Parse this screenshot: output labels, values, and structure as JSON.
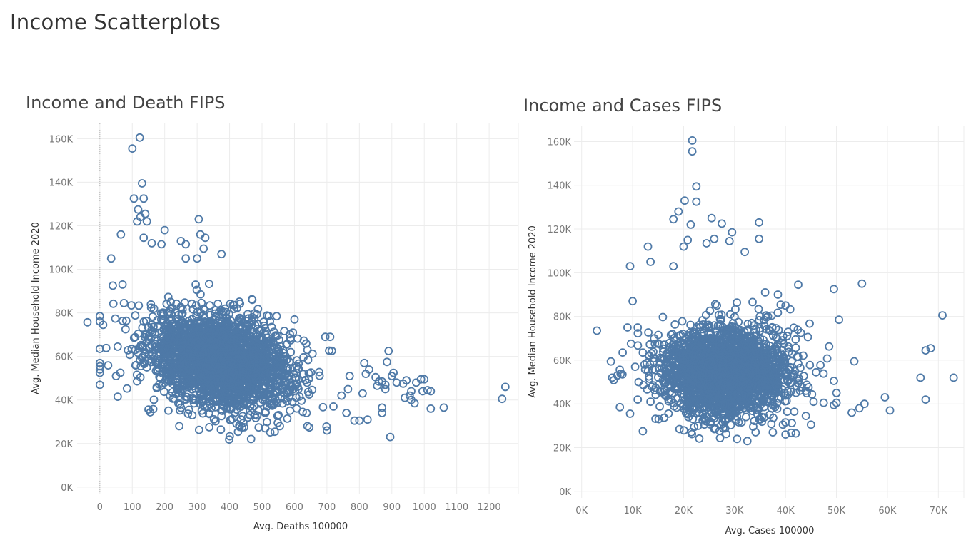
{
  "dashboard": {
    "title": "Income Scatterplots"
  },
  "colors": {
    "marker": "#4e79a7",
    "grid": "#ececec",
    "zero_line": "#b0b0b0"
  },
  "chart_data": [
    {
      "type": "scatter",
      "title": "Income and Death FIPS",
      "xlabel": "Avg. Deaths 100000",
      "ylabel": "Avg. Median Household Income 2020",
      "xlim": [
        -70,
        1290
      ],
      "ylim": [
        -3000,
        167000
      ],
      "xticks": [
        0,
        100,
        200,
        300,
        400,
        500,
        600,
        700,
        800,
        900,
        1000,
        1100,
        1200
      ],
      "xtick_labels": [
        "0",
        "100",
        "200",
        "300",
        "400",
        "500",
        "600",
        "700",
        "800",
        "900",
        "1000",
        "1100",
        "1200"
      ],
      "yticks": [
        0,
        20000,
        40000,
        60000,
        80000,
        100000,
        120000,
        140000,
        160000
      ],
      "ytick_labels": [
        "0K",
        "20K",
        "40K",
        "60K",
        "80K",
        "100K",
        "120K",
        "140K",
        "160K"
      ],
      "grid": true,
      "marker": "open-circle",
      "cluster": {
        "x_mean": 370,
        "x_sd": 110,
        "y_mean": 58000,
        "y_sd": 10500,
        "slope": -30,
        "count": 2400
      },
      "points": [
        [
          0,
          78500
        ],
        [
          0,
          76000
        ],
        [
          0,
          63500
        ],
        [
          0,
          57000
        ],
        [
          0,
          55500
        ],
        [
          0,
          54000
        ],
        [
          0,
          52500
        ],
        [
          0,
          47000
        ],
        [
          10,
          74500
        ],
        [
          35,
          105000
        ],
        [
          50,
          51000
        ],
        [
          70,
          93000
        ],
        [
          40,
          92500
        ],
        [
          55,
          64500
        ],
        [
          55,
          41500
        ],
        [
          65,
          116000
        ],
        [
          100,
          155500
        ],
        [
          123,
          160500
        ],
        [
          130,
          139500
        ],
        [
          105,
          132500
        ],
        [
          135,
          132500
        ],
        [
          118,
          127500
        ],
        [
          125,
          124000
        ],
        [
          140,
          125500
        ],
        [
          145,
          122000
        ],
        [
          115,
          122000
        ],
        [
          200,
          118000
        ],
        [
          250,
          113000
        ],
        [
          305,
          123000
        ],
        [
          310,
          116000
        ],
        [
          325,
          114500
        ],
        [
          135,
          114500
        ],
        [
          160,
          112000
        ],
        [
          190,
          111500
        ],
        [
          320,
          109500
        ],
        [
          375,
          107000
        ],
        [
          300,
          105000
        ],
        [
          265,
          111500
        ],
        [
          265,
          105000
        ],
        [
          470,
          86000
        ],
        [
          470,
          78000
        ],
        [
          545,
          78500
        ],
        [
          600,
          77000
        ],
        [
          595,
          71000
        ],
        [
          695,
          69000
        ],
        [
          710,
          69000
        ],
        [
          890,
          62500
        ],
        [
          885,
          57500
        ],
        [
          815,
          57000
        ],
        [
          770,
          51000
        ],
        [
          640,
          63000
        ],
        [
          820,
          52000
        ],
        [
          830,
          54000
        ],
        [
          850,
          50500
        ],
        [
          860,
          48500
        ],
        [
          870,
          48500
        ],
        [
          880,
          47000
        ],
        [
          855,
          46500
        ],
        [
          900,
          51000
        ],
        [
          905,
          52500
        ],
        [
          915,
          48000
        ],
        [
          935,
          47500
        ],
        [
          945,
          49000
        ],
        [
          960,
          44000
        ],
        [
          975,
          48000
        ],
        [
          990,
          49500
        ],
        [
          1000,
          49500
        ],
        [
          995,
          44000
        ],
        [
          1010,
          44500
        ],
        [
          1020,
          44000
        ],
        [
          955,
          42000
        ],
        [
          960,
          40000
        ],
        [
          940,
          41000
        ],
        [
          970,
          38500
        ],
        [
          1020,
          36000
        ],
        [
          1060,
          36500
        ],
        [
          1240,
          40500
        ],
        [
          1250,
          46000
        ],
        [
          800,
          30500
        ],
        [
          785,
          30500
        ],
        [
          870,
          36500
        ],
        [
          870,
          34000
        ],
        [
          895,
          23000
        ],
        [
          700,
          26000
        ],
        [
          640,
          28000
        ],
        [
          555,
          28000
        ],
        [
          510,
          27000
        ],
        [
          445,
          27500
        ],
        [
          245,
          28000
        ],
        [
          285,
          33000
        ],
        [
          825,
          31000
        ],
        [
          760,
          34000
        ],
        [
          880,
          45000
        ],
        [
          720,
          37000
        ],
        [
          745,
          42000
        ],
        [
          810,
          43000
        ],
        [
          765,
          45000
        ]
      ]
    },
    {
      "type": "scatter",
      "title": "Income and Cases FIPS",
      "xlabel": "Avg. Cases 100000",
      "ylabel": "Avg. Median Household Income 2020",
      "xlim": [
        -1500,
        75000
      ],
      "ylim": [
        -3000,
        167000
      ],
      "xticks": [
        0,
        10000,
        20000,
        30000,
        40000,
        50000,
        60000,
        70000
      ],
      "xtick_labels": [
        "0K",
        "10K",
        "20K",
        "30K",
        "40K",
        "50K",
        "60K",
        "70K"
      ],
      "yticks": [
        0,
        20000,
        40000,
        60000,
        80000,
        100000,
        120000,
        140000,
        160000
      ],
      "ytick_labels": [
        "0K",
        "20K",
        "40K",
        "60K",
        "80K",
        "100K",
        "120K",
        "140K",
        "160K"
      ],
      "grid": true,
      "marker": "open-circle",
      "cluster": {
        "x_mean": 28000,
        "x_sd": 6000,
        "y_mean": 55000,
        "y_sd": 10000,
        "slope": 0,
        "count": 2400
      },
      "points": [
        [
          21700,
          160500
        ],
        [
          21700,
          155500
        ],
        [
          22500,
          139500
        ],
        [
          22500,
          132500
        ],
        [
          20200,
          133000
        ],
        [
          19000,
          128000
        ],
        [
          18000,
          124500
        ],
        [
          21400,
          122000
        ],
        [
          25500,
          125000
        ],
        [
          29500,
          118500
        ],
        [
          27500,
          122500
        ],
        [
          34800,
          123000
        ],
        [
          34800,
          115500
        ],
        [
          26000,
          115500
        ],
        [
          29000,
          114500
        ],
        [
          24500,
          113500
        ],
        [
          20800,
          115000
        ],
        [
          20000,
          112000
        ],
        [
          13000,
          112000
        ],
        [
          9500,
          103000
        ],
        [
          13500,
          105000
        ],
        [
          18000,
          103000
        ],
        [
          32000,
          109500
        ],
        [
          38500,
          90000
        ],
        [
          42500,
          94500
        ],
        [
          49500,
          92500
        ],
        [
          55000,
          95000
        ],
        [
          50500,
          78500
        ],
        [
          40000,
          85000
        ],
        [
          36000,
          91000
        ],
        [
          70800,
          80500
        ],
        [
          3000,
          73500
        ],
        [
          10000,
          87000
        ],
        [
          9000,
          75000
        ],
        [
          11000,
          75000
        ],
        [
          6000,
          52000
        ],
        [
          7000,
          53000
        ],
        [
          8000,
          53500
        ],
        [
          7500,
          38500
        ],
        [
          9500,
          35500
        ],
        [
          12000,
          27500
        ],
        [
          19200,
          28500
        ],
        [
          32500,
          23000
        ],
        [
          37500,
          27000
        ],
        [
          40000,
          26000
        ],
        [
          42000,
          26500
        ],
        [
          45000,
          30500
        ],
        [
          44000,
          34500
        ],
        [
          45500,
          41000
        ],
        [
          46000,
          54500
        ],
        [
          47500,
          40500
        ],
        [
          49500,
          50500
        ],
        [
          50000,
          45000
        ],
        [
          50000,
          40500
        ],
        [
          49500,
          39500
        ],
        [
          53000,
          36000
        ],
        [
          54500,
          38000
        ],
        [
          55500,
          40000
        ],
        [
          53500,
          59500
        ],
        [
          59500,
          43000
        ],
        [
          60500,
          37000
        ],
        [
          66500,
          52000
        ],
        [
          67500,
          64500
        ],
        [
          68500,
          65500
        ],
        [
          67500,
          42000
        ],
        [
          73000,
          52000
        ],
        [
          13500,
          41000
        ],
        [
          15500,
          45500
        ],
        [
          11000,
          42000
        ],
        [
          13000,
          55000
        ],
        [
          12000,
          63500
        ],
        [
          10500,
          57000
        ],
        [
          14000,
          48500
        ],
        [
          43000,
          72500
        ],
        [
          40500,
          73000
        ],
        [
          42500,
          58500
        ],
        [
          42500,
          49500
        ],
        [
          44000,
          46000
        ],
        [
          39500,
          30500
        ]
      ]
    }
  ]
}
